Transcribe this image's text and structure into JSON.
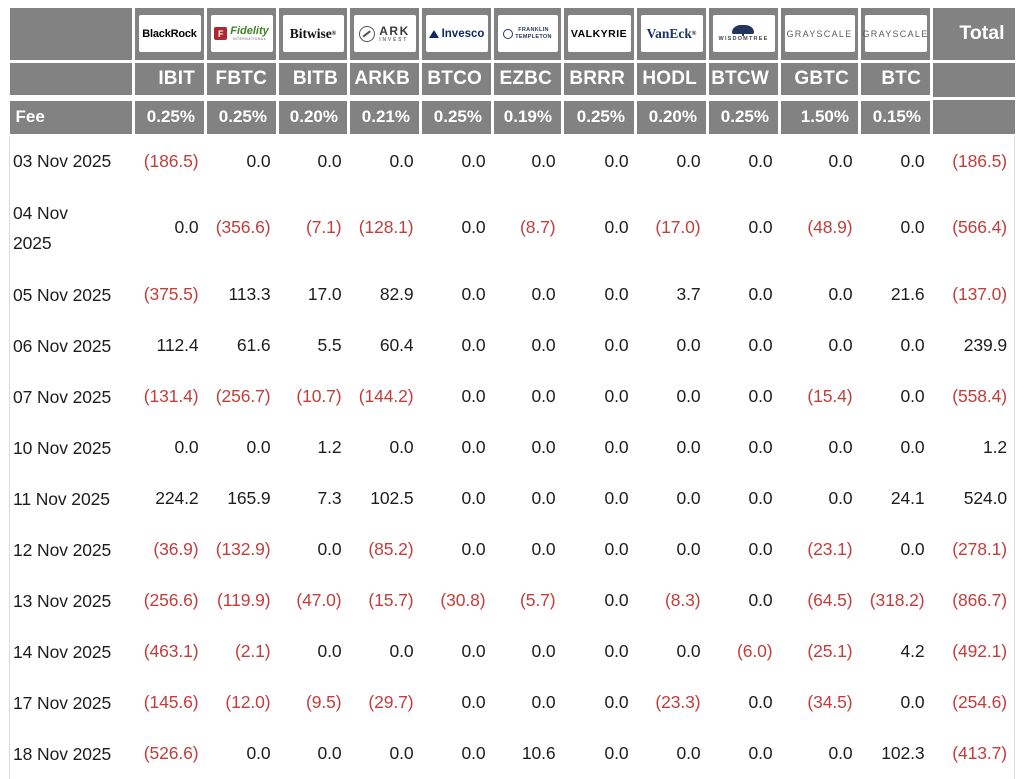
{
  "header": {
    "fee_label": "Fee",
    "total_label": "Total",
    "providers": [
      {
        "name": "BlackRock",
        "ticker": "IBIT",
        "fee": "0.25%"
      },
      {
        "name": "Fidelity",
        "ticker": "FBTC",
        "fee": "0.25%"
      },
      {
        "name": "Bitwise",
        "ticker": "BITB",
        "fee": "0.20%"
      },
      {
        "name": "ARK Invest",
        "ticker": "ARKB",
        "fee": "0.21%"
      },
      {
        "name": "Invesco",
        "ticker": "BTCO",
        "fee": "0.25%"
      },
      {
        "name": "Franklin Templeton",
        "ticker": "EZBC",
        "fee": "0.19%"
      },
      {
        "name": "Valkyrie",
        "ticker": "BRRR",
        "fee": "0.25%"
      },
      {
        "name": "VanEck",
        "ticker": "HODL",
        "fee": "0.20%"
      },
      {
        "name": "WisdomTree",
        "ticker": "BTCW",
        "fee": "0.25%"
      },
      {
        "name": "Grayscale",
        "ticker": "GBTC",
        "fee": "1.50%"
      },
      {
        "name": "Grayscale",
        "ticker": "BTC",
        "fee": "0.15%"
      }
    ],
    "logos": {
      "blackrock": {
        "text": "BlackRock"
      },
      "fidelity": {
        "icon": "F",
        "text": "Fidelity",
        "subtext": "INTERNATIONAL"
      },
      "bitwise": {
        "text": "Bitwise",
        "reg": "®"
      },
      "ark": {
        "line1": "ARK",
        "line2": "INVEST"
      },
      "invesco": {
        "text": "Invesco"
      },
      "franklin": {
        "line1": "FRANKLIN",
        "line2": "TEMPLETON"
      },
      "valkyrie": {
        "text": "VALKYRIE"
      },
      "vaneck": {
        "text": "VanEck",
        "reg": "®"
      },
      "wisdomtree": {
        "text": "WISDOMTREE"
      },
      "grayscale": {
        "text": "GRAYSCALE"
      },
      "grayscale2": {
        "text": "GRAYSCALE"
      }
    }
  },
  "colors": {
    "header_bg": "#828282",
    "negative_text": "#c13e3c",
    "positive_text": "#1d1d1f"
  },
  "rows": [
    {
      "date": "03 Nov 2025",
      "values": [
        "(186.5)",
        "0.0",
        "0.0",
        "0.0",
        "0.0",
        "0.0",
        "0.0",
        "0.0",
        "0.0",
        "0.0",
        "0.0",
        "(186.5)"
      ]
    },
    {
      "date": "04 Nov\n2025",
      "values": [
        "0.0",
        "(356.6)",
        "(7.1)",
        "(128.1)",
        "0.0",
        "(8.7)",
        "0.0",
        "(17.0)",
        "0.0",
        "(48.9)",
        "0.0",
        "(566.4)"
      ]
    },
    {
      "date": "05 Nov 2025",
      "values": [
        "(375.5)",
        "113.3",
        "17.0",
        "82.9",
        "0.0",
        "0.0",
        "0.0",
        "3.7",
        "0.0",
        "0.0",
        "21.6",
        "(137.0)"
      ]
    },
    {
      "date": "06 Nov 2025",
      "values": [
        "112.4",
        "61.6",
        "5.5",
        "60.4",
        "0.0",
        "0.0",
        "0.0",
        "0.0",
        "0.0",
        "0.0",
        "0.0",
        "239.9"
      ]
    },
    {
      "date": "07 Nov 2025",
      "values": [
        "(131.4)",
        "(256.7)",
        "(10.7)",
        "(144.2)",
        "0.0",
        "0.0",
        "0.0",
        "0.0",
        "0.0",
        "(15.4)",
        "0.0",
        "(558.4)"
      ]
    },
    {
      "date": "10 Nov 2025",
      "values": [
        "0.0",
        "0.0",
        "1.2",
        "0.0",
        "0.0",
        "0.0",
        "0.0",
        "0.0",
        "0.0",
        "0.0",
        "0.0",
        "1.2"
      ]
    },
    {
      "date": "11 Nov 2025",
      "values": [
        "224.2",
        "165.9",
        "7.3",
        "102.5",
        "0.0",
        "0.0",
        "0.0",
        "0.0",
        "0.0",
        "0.0",
        "24.1",
        "524.0"
      ]
    },
    {
      "date": "12 Nov 2025",
      "values": [
        "(36.9)",
        "(132.9)",
        "0.0",
        "(85.2)",
        "0.0",
        "0.0",
        "0.0",
        "0.0",
        "0.0",
        "(23.1)",
        "0.0",
        "(278.1)"
      ]
    },
    {
      "date": "13 Nov 2025",
      "values": [
        "(256.6)",
        "(119.9)",
        "(47.0)",
        "(15.7)",
        "(30.8)",
        "(5.7)",
        "0.0",
        "(8.3)",
        "0.0",
        "(64.5)",
        "(318.2)",
        "(866.7)"
      ]
    },
    {
      "date": "14 Nov 2025",
      "values": [
        "(463.1)",
        "(2.1)",
        "0.0",
        "0.0",
        "0.0",
        "0.0",
        "0.0",
        "0.0",
        "(6.0)",
        "(25.1)",
        "4.2",
        "(492.1)"
      ]
    },
    {
      "date": "17 Nov 2025",
      "values": [
        "(145.6)",
        "(12.0)",
        "(9.5)",
        "(29.7)",
        "0.0",
        "0.0",
        "0.0",
        "(23.3)",
        "0.0",
        "(34.5)",
        "0.0",
        "(254.6)"
      ]
    },
    {
      "date": "18 Nov 2025",
      "values": [
        "(526.6)",
        "0.0",
        "0.0",
        "0.0",
        "0.0",
        "10.6",
        "0.0",
        "0.0",
        "0.0",
        "0.0",
        "102.3",
        "(413.7)"
      ]
    }
  ]
}
